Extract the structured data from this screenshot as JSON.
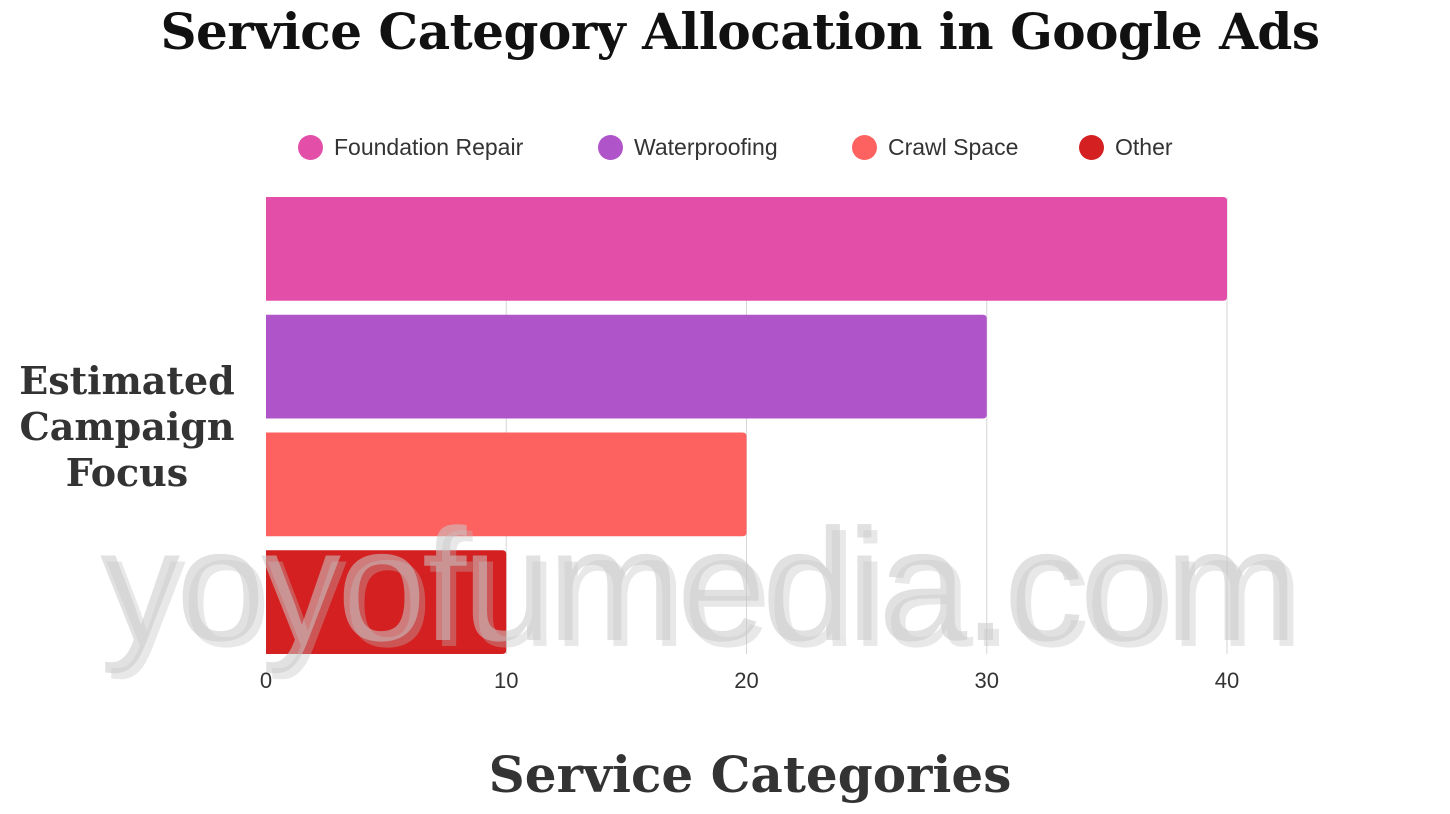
{
  "chart_data": {
    "type": "bar",
    "orientation": "horizontal",
    "title": "Service Category Allocation in Google Ads",
    "xlabel": "Service Categories",
    "ylabel": "Estimated Campaign Focus",
    "categories": [
      "Foundation Repair",
      "Waterproofing",
      "Crawl Space",
      "Other"
    ],
    "values": [
      40,
      30,
      20,
      10
    ],
    "colors": [
      "#e24ea8",
      "#b054c9",
      "#fd6261",
      "#d42020"
    ],
    "xlim": [
      0,
      40
    ],
    "xticks": [
      0,
      10,
      20,
      30,
      40
    ],
    "xtick_labels": [
      "0",
      "10",
      "20",
      "30",
      "40"
    ],
    "grid": "vertical",
    "legend": {
      "placement": "top",
      "entries": [
        "Foundation Repair",
        "Waterproofing",
        "Crawl Space",
        "Other"
      ]
    }
  },
  "watermark": "yoyofumedia.com"
}
